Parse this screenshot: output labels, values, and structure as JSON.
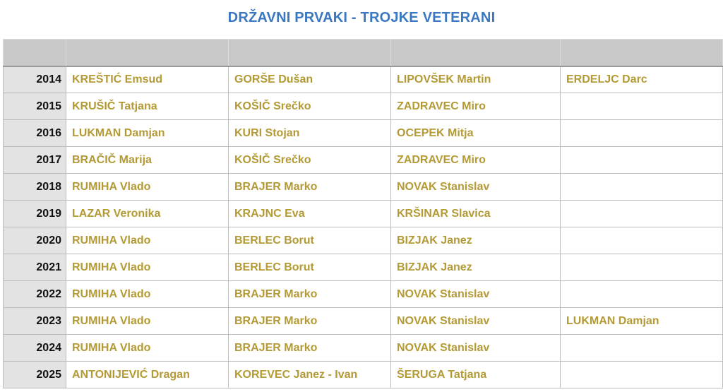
{
  "title": "DRŽAVNI PRVAKI - TROJKE VETERANI",
  "colors": {
    "title": "#3a78c2",
    "names": "#b39a35",
    "year_bg": "#e3e3e3",
    "header_bg": "#c8c8c8"
  },
  "rows": [
    {
      "year": "2014",
      "players": [
        "KREŠTIĆ Emsud",
        "GORŠE Dušan",
        "LIPOVŠEK Martin",
        "ERDELJC Darc"
      ]
    },
    {
      "year": "2015",
      "players": [
        "KRUŠIČ Tatjana",
        "KOŠIČ Srečko",
        "ZADRAVEC Miro",
        ""
      ]
    },
    {
      "year": "2016",
      "players": [
        "LUKMAN Damjan",
        "KURI Stojan",
        "OCEPEK Mitja",
        ""
      ]
    },
    {
      "year": "2017",
      "players": [
        "BRAČIČ Marija",
        "KOŠIČ Srečko",
        "ZADRAVEC Miro",
        ""
      ]
    },
    {
      "year": "2018",
      "players": [
        "RUMIHA Vlado",
        "BRAJER Marko",
        "NOVAK Stanislav",
        ""
      ]
    },
    {
      "year": "2019",
      "players": [
        "LAZAR Veronika",
        "KRAJNC Eva",
        "KRŠINAR Slavica",
        ""
      ]
    },
    {
      "year": "2020",
      "players": [
        "RUMIHA Vlado",
        "BERLEC Borut",
        "BIZJAK Janez",
        ""
      ]
    },
    {
      "year": "2021",
      "players": [
        "RUMIHA Vlado",
        "BERLEC Borut",
        "BIZJAK Janez",
        ""
      ]
    },
    {
      "year": "2022",
      "players": [
        "RUMIHA Vlado",
        "BRAJER Marko",
        "NOVAK Stanislav",
        ""
      ]
    },
    {
      "year": "2023",
      "players": [
        "RUMIHA Vlado",
        "BRAJER Marko",
        "NOVAK Stanislav",
        "LUKMAN Damjan"
      ]
    },
    {
      "year": "2024",
      "players": [
        "RUMIHA Vlado",
        "BRAJER Marko",
        "NOVAK Stanislav",
        ""
      ]
    },
    {
      "year": "2025",
      "players": [
        "ANTONIJEVIĆ Dragan",
        "KOREVEC Janez - Ivan",
        "ŠERUGA Tatjana",
        ""
      ]
    }
  ]
}
